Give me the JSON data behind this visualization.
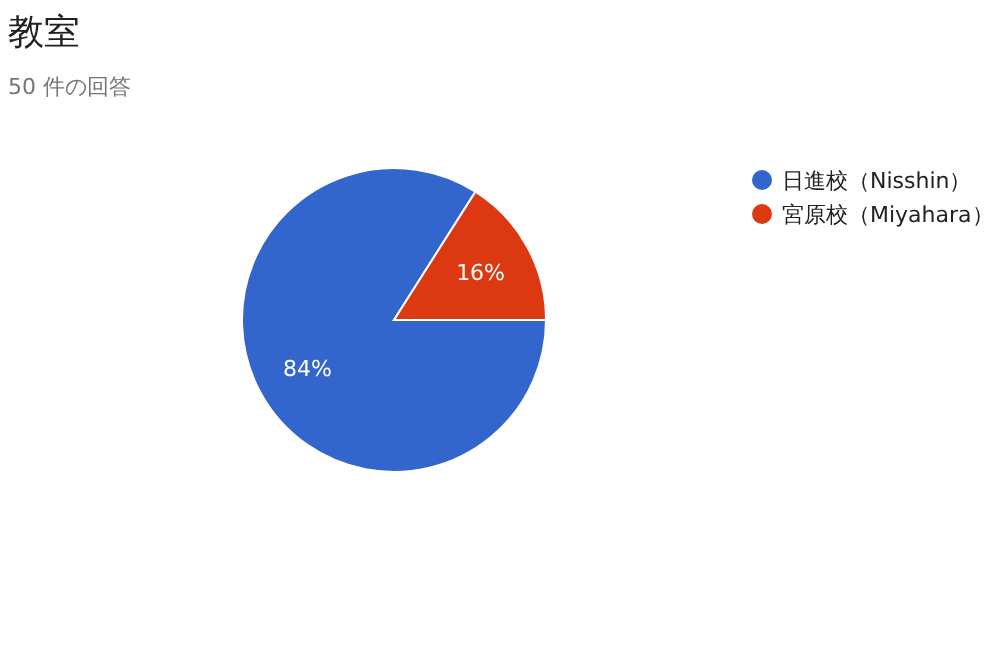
{
  "chart_data": {
    "type": "pie",
    "title": "教室",
    "subtitle": "50 件の回答",
    "categories": [
      "日進校（Nisshin）",
      "宮原校（Miyahara）"
    ],
    "values": [
      84,
      16
    ],
    "colors": [
      "#3366cc",
      "#dc3912"
    ],
    "value_labels": [
      "84%",
      "16%"
    ],
    "legend": "right"
  }
}
